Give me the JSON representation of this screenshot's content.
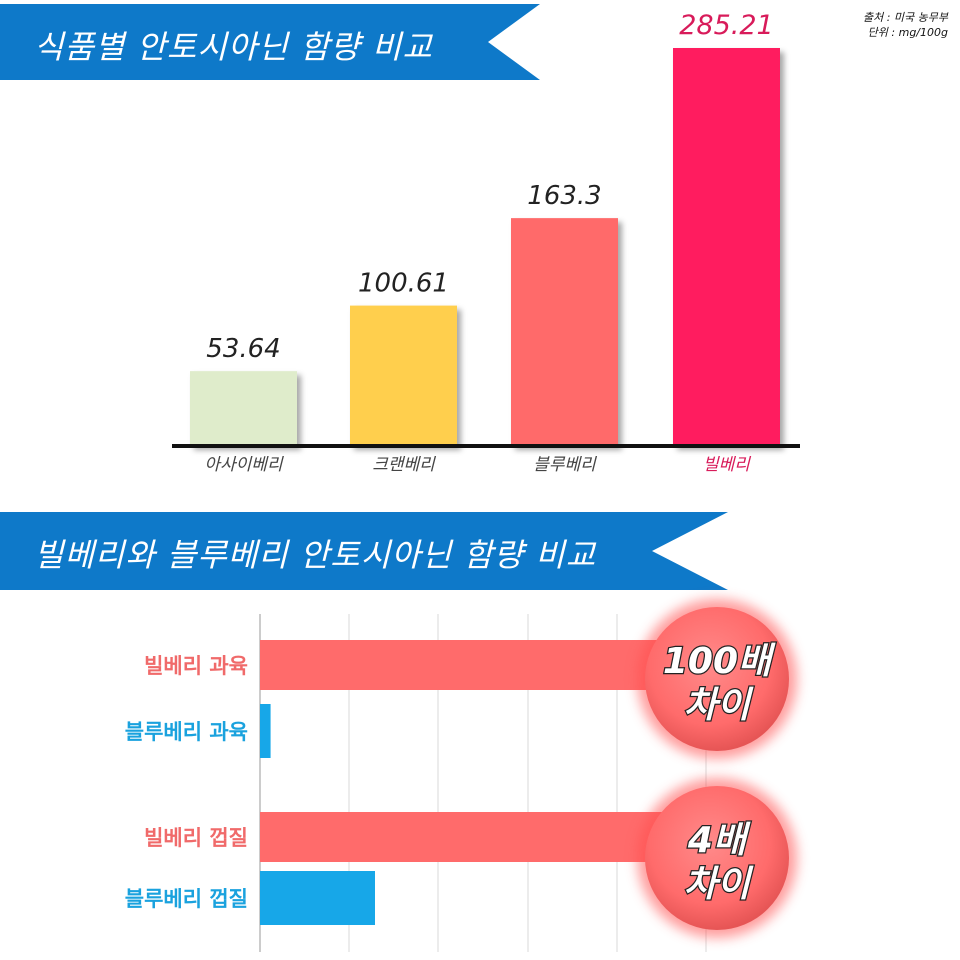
{
  "colors": {
    "banner": "#0e79c9",
    "acai": "#dfeccb",
    "cranberry": "#ffcf4d",
    "blueberry": "#ff6b6b",
    "bilberry": "#ff1c5e",
    "bilberry_bar": "#ff6b6b",
    "blueberry_bar": "#17a7e8"
  },
  "source_note": {
    "source": "출처 : 미국 농무부",
    "unit": "단위 : mg/100g"
  },
  "chart_data": [
    {
      "type": "bar",
      "title": "식품별 안토시아닌 함량 비교",
      "categories": [
        "아사이베리",
        "크랜베리",
        "블루베리",
        "빌베리"
      ],
      "values": [
        53.64,
        100.61,
        163.3,
        285.21
      ],
      "value_labels": [
        "53.64",
        "100.61",
        "163.3",
        "285.21"
      ],
      "ylim": [
        0,
        285.21
      ]
    },
    {
      "type": "bar",
      "orientation": "horizontal",
      "title": "빌베리와 블루베리 안토시아닌 함량 비교",
      "categories": [
        "빌베리 과육",
        "블루베리 과육",
        "빌베리 껍질",
        "블루베리 껍질"
      ],
      "values": [
        100,
        1,
        4,
        1
      ],
      "grid": true,
      "callouts": [
        {
          "line1": "100배",
          "line2": "차이"
        },
        {
          "line1": "4배",
          "line2": "차이"
        }
      ]
    }
  ]
}
